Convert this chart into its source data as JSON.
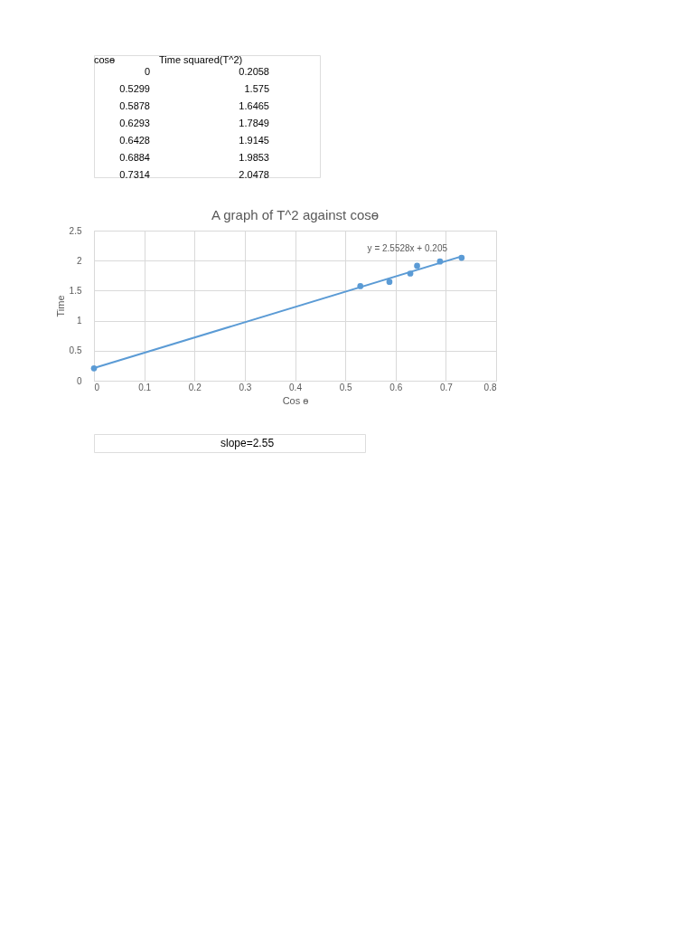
{
  "chart_data": {
    "type": "scatter",
    "title": "A graph of T^2 against cosɵ",
    "xlabel": "Cos ɵ",
    "ylabel": "Time",
    "x": [
      0,
      0.5299,
      0.5878,
      0.6293,
      0.6428,
      0.6884,
      0.7314
    ],
    "series": [
      {
        "color": "#5b9bd5",
        "values": [
          0.2058,
          1.575,
          1.6465,
          1.7849,
          1.9145,
          1.9853,
          2.0478
        ],
        "marker": "circle"
      },
      {
        "type": "line",
        "color": "#5b9bd5",
        "x": [
          0,
          0.7314
        ],
        "values": [
          0.21,
          2.07
        ],
        "line_style": "solid"
      }
    ],
    "xlim": [
      0,
      0.8
    ],
    "xticks": [
      0,
      0.1,
      0.2,
      0.3,
      0.4,
      0.5,
      0.6,
      0.7,
      0.8
    ],
    "ylim": [
      0,
      2.5
    ],
    "yticks": [
      0,
      0.5,
      1,
      1.5,
      2,
      2.5
    ],
    "grid": true,
    "legend": false,
    "annotations": [
      "cosɵ",
      "Time squared(T^2)",
      "0",
      "0.2058",
      "0.5299",
      "1.575",
      "0.5878",
      "1.6465",
      "0.6293",
      "1.7849",
      "0.6428",
      "1.9145",
      "0.6884",
      "1.9853",
      "0.7314",
      "2.0478",
      "y = 2.5528x + 0.205",
      "slope=2.55"
    ]
  }
}
